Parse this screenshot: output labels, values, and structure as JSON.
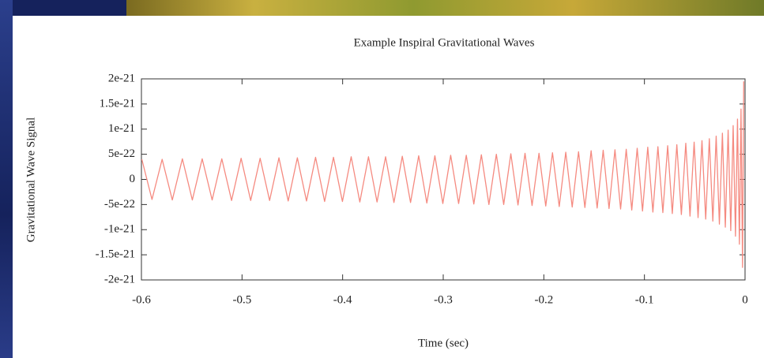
{
  "chart_data": {
    "type": "line",
    "title": "Example Inspiral Gravitational Waves",
    "x_label": "Time (sec)",
    "y_label": "Gravitational Wave Signal",
    "color": "#f58a80",
    "xlim": [
      -0.6,
      0
    ],
    "ylim": [
      -2e-21,
      2e-21
    ],
    "xticks": [
      -0.6,
      -0.5,
      -0.4,
      -0.3,
      -0.2,
      -0.1,
      0
    ],
    "yticks": [
      2e-21,
      1.5e-21,
      1e-21,
      5e-22,
      0,
      -5e-22,
      -1e-21,
      -1.5e-21,
      -2e-21
    ],
    "x": [
      -0.5996,
      -0.5895,
      -0.5794,
      -0.5693,
      -0.5593,
      -0.5494,
      -0.5396,
      -0.5297,
      -0.5201,
      -0.5104,
      -0.5009,
      -0.4914,
      -0.482,
      -0.4726,
      -0.4633,
      -0.4541,
      -0.445,
      -0.4359,
      -0.4269,
      -0.4179,
      -0.4091,
      -0.4002,
      -0.3915,
      -0.3829,
      -0.3743,
      -0.3658,
      -0.3573,
      -0.349,
      -0.3407,
      -0.3325,
      -0.3244,
      -0.3163,
      -0.3083,
      -0.3004,
      -0.2926,
      -0.2847,
      -0.2771,
      -0.2696,
      -0.2621,
      -0.2546,
      -0.2472,
      -0.2399,
      -0.2328,
      -0.2257,
      -0.2187,
      -0.2117,
      -0.2048,
      -0.1981,
      -0.1914,
      -0.1847,
      -0.1782,
      -0.1718,
      -0.1655,
      -0.1592,
      -0.153,
      -0.147,
      -0.141,
      -0.1352,
      -0.1293,
      -0.1237,
      -0.1181,
      -0.1126,
      -0.1072,
      -0.1019,
      -0.0967,
      -0.0916,
      -0.0866,
      -0.0817,
      -0.0769,
      -0.0723,
      -0.0678,
      -0.0633,
      -0.0589,
      -0.0547,
      -0.0506,
      -0.0467,
      -0.0428,
      -0.0391,
      -0.0355,
      -0.032,
      -0.0287,
      -0.0255,
      -0.0225,
      -0.0196,
      -0.0168,
      -0.0142,
      -0.0118,
      -0.0095,
      -0.0075,
      -0.0056,
      -0.004,
      -0.0025,
      -0.0013
    ],
    "values": [
      4e-22,
      -4e-22,
      4e-22,
      -4.1e-22,
      4.1e-22,
      -4.1e-22,
      4.1e-22,
      -4.1e-22,
      4.1e-22,
      -4.2e-22,
      4.2e-22,
      -4.2e-22,
      4.2e-22,
      -4.2e-22,
      4.3e-22,
      -4.3e-22,
      4.3e-22,
      -4.3e-22,
      4.4e-22,
      -4.4e-22,
      4.4e-22,
      -4.4e-22,
      4.5e-22,
      -4.5e-22,
      4.5e-22,
      -4.5e-22,
      4.5e-22,
      -4.6e-22,
      4.6e-22,
      -4.6e-22,
      4.7e-22,
      -4.7e-22,
      4.7e-22,
      -4.8e-22,
      4.8e-22,
      -4.8e-22,
      4.8e-22,
      -4.9e-22,
      4.9e-22,
      -5e-22,
      5e-22,
      -5e-22,
      5.1e-22,
      -5.1e-22,
      5.2e-22,
      -5.2e-22,
      5.2e-22,
      -5.3e-22,
      5.3e-22,
      -5.4e-22,
      5.4e-22,
      -5.5e-22,
      5.5e-22,
      -5.6e-22,
      5.7e-22,
      -5.7e-22,
      5.8e-22,
      -5.8e-22,
      5.9e-22,
      -5.9e-22,
      6e-22,
      -6.1e-22,
      6.2e-22,
      -6.3e-22,
      6.4e-22,
      -6.5e-22,
      6.5e-22,
      -6.6e-22,
      6.7e-22,
      -6.8e-22,
      6.9e-22,
      -7e-22,
      7.2e-22,
      -7.3e-22,
      7.4e-22,
      -7.6e-22,
      7.7e-22,
      -7.9e-22,
      8.1e-22,
      -8.3e-22,
      8.6e-22,
      -8.9e-22,
      9.2e-22,
      -9.5e-22,
      9.8e-22,
      -1.02e-21,
      1.07e-21,
      -1.13e-21,
      1.2e-21,
      -1.29e-21,
      1.4e-21,
      -1.75e-21,
      1.95e-21
    ]
  }
}
